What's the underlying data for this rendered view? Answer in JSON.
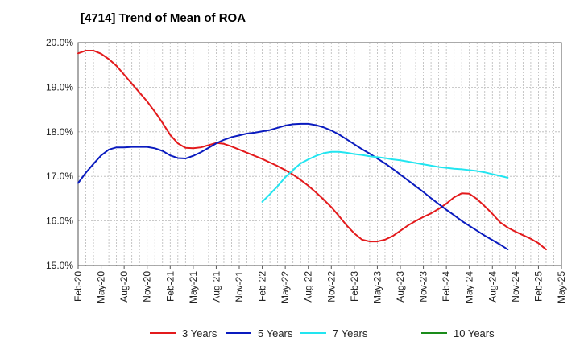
{
  "chart_data": {
    "type": "line",
    "title": "[4714]  Trend of Mean of ROA",
    "xlabel": "",
    "ylabel": "",
    "ylim": [
      15.0,
      20.0
    ],
    "yticks": [
      "15.0%",
      "16.0%",
      "17.0%",
      "18.0%",
      "19.0%",
      "20.0%"
    ],
    "yticks_values": [
      15,
      16,
      17,
      18,
      19,
      20
    ],
    "x_months": [
      "Feb-20",
      "Mar-20",
      "Apr-20",
      "May-20",
      "Jun-20",
      "Jul-20",
      "Aug-20",
      "Sep-20",
      "Oct-20",
      "Nov-20",
      "Dec-20",
      "Jan-21",
      "Feb-21",
      "Mar-21",
      "Apr-21",
      "May-21",
      "Jun-21",
      "Jul-21",
      "Aug-21",
      "Sep-21",
      "Oct-21",
      "Nov-21",
      "Dec-21",
      "Jan-22",
      "Feb-22",
      "Mar-22",
      "Apr-22",
      "May-22",
      "Jun-22",
      "Jul-22",
      "Aug-22",
      "Sep-22",
      "Oct-22",
      "Nov-22",
      "Dec-22",
      "Jan-23",
      "Feb-23",
      "Mar-23",
      "Apr-23",
      "May-23",
      "Jun-23",
      "Jul-23",
      "Aug-23",
      "Sep-23",
      "Oct-23",
      "Nov-23",
      "Dec-23",
      "Jan-24",
      "Feb-24",
      "Mar-24",
      "Apr-24",
      "May-24",
      "Jun-24",
      "Jul-24",
      "Aug-24",
      "Sep-24",
      "Oct-24",
      "Nov-24",
      "Dec-24",
      "Jan-25",
      "Feb-25",
      "Mar-25",
      "Apr-25",
      "May-25"
    ],
    "x_tick_labels": [
      "Feb-20",
      "May-20",
      "Aug-20",
      "Nov-20",
      "Feb-21",
      "May-21",
      "Aug-21",
      "Nov-21",
      "Feb-22",
      "May-22",
      "Aug-22",
      "Nov-22",
      "Feb-23",
      "May-23",
      "Aug-23",
      "Nov-23",
      "Feb-24",
      "May-24",
      "Aug-24",
      "Nov-24",
      "Feb-25",
      "May-25"
    ],
    "grid": true,
    "legend_position": "bottom",
    "series": [
      {
        "name": "3 Years",
        "color": "#e31a1c",
        "start": "Feb-20",
        "values": [
          19.76,
          19.82,
          19.82,
          19.75,
          19.63,
          19.48,
          19.28,
          19.08,
          18.88,
          18.68,
          18.45,
          18.2,
          17.93,
          17.74,
          17.64,
          17.63,
          17.65,
          17.7,
          17.75,
          17.73,
          17.67,
          17.6,
          17.53,
          17.46,
          17.39,
          17.31,
          17.23,
          17.14,
          17.04,
          16.92,
          16.79,
          16.64,
          16.48,
          16.31,
          16.11,
          15.9,
          15.72,
          15.58,
          15.54,
          15.54,
          15.58,
          15.66,
          15.78,
          15.9,
          16.0,
          16.09,
          16.17,
          16.27,
          16.39,
          16.53,
          16.62,
          16.61,
          16.49,
          16.33,
          16.16,
          15.97,
          15.85,
          15.76,
          15.68,
          15.6,
          15.5,
          15.36
        ]
      },
      {
        "name": "5 Years",
        "color": "#0a1bbf",
        "start": "Feb-20",
        "values": [
          16.85,
          17.08,
          17.28,
          17.47,
          17.6,
          17.65,
          17.65,
          17.66,
          17.66,
          17.66,
          17.63,
          17.57,
          17.47,
          17.41,
          17.4,
          17.46,
          17.54,
          17.64,
          17.74,
          17.82,
          17.88,
          17.92,
          17.96,
          17.98,
          18.01,
          18.04,
          18.09,
          18.14,
          18.17,
          18.18,
          18.18,
          18.15,
          18.1,
          18.03,
          17.94,
          17.83,
          17.72,
          17.61,
          17.51,
          17.4,
          17.29,
          17.17,
          17.04,
          16.91,
          16.78,
          16.65,
          16.51,
          16.38,
          16.25,
          16.13,
          16.0,
          15.89,
          15.78,
          15.67,
          15.57,
          15.47,
          15.36
        ]
      },
      {
        "name": "7 Years",
        "color": "#22e5f0",
        "start": "Feb-22",
        "values": [
          16.43,
          16.6,
          16.78,
          16.98,
          17.14,
          17.29,
          17.38,
          17.46,
          17.52,
          17.55,
          17.55,
          17.53,
          17.5,
          17.48,
          17.45,
          17.43,
          17.41,
          17.38,
          17.36,
          17.33,
          17.3,
          17.27,
          17.24,
          17.21,
          17.19,
          17.17,
          17.16,
          17.14,
          17.12,
          17.09,
          17.05,
          17.01,
          16.97
        ]
      },
      {
        "name": "10 Years",
        "color": "#1a8c1a",
        "start": "Feb-25",
        "values": []
      }
    ]
  }
}
